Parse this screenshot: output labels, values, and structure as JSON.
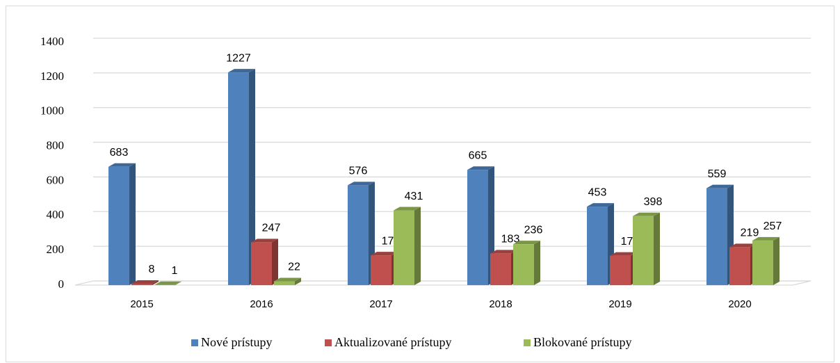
{
  "chart_data": {
    "type": "bar",
    "categories": [
      "2015",
      "2016",
      "2017",
      "2018",
      "2019",
      "2020"
    ],
    "series": [
      {
        "name": "Nové prístupy",
        "color": "#4f81bd",
        "values": [
          683,
          1227,
          576,
          665,
          453,
          559
        ]
      },
      {
        "name": "Aktualizované prístupy",
        "color": "#c0504d",
        "values": [
          8,
          247,
          172,
          183,
          170,
          219
        ]
      },
      {
        "name": "Blokované prístupy",
        "color": "#9bbb59",
        "values": [
          1,
          22,
          431,
          236,
          398,
          257
        ]
      }
    ],
    "ylim": [
      0,
      1400
    ],
    "yticks": [
      0,
      200,
      400,
      600,
      800,
      1000,
      1200,
      1400
    ],
    "grid": true,
    "legend": "bottom"
  }
}
